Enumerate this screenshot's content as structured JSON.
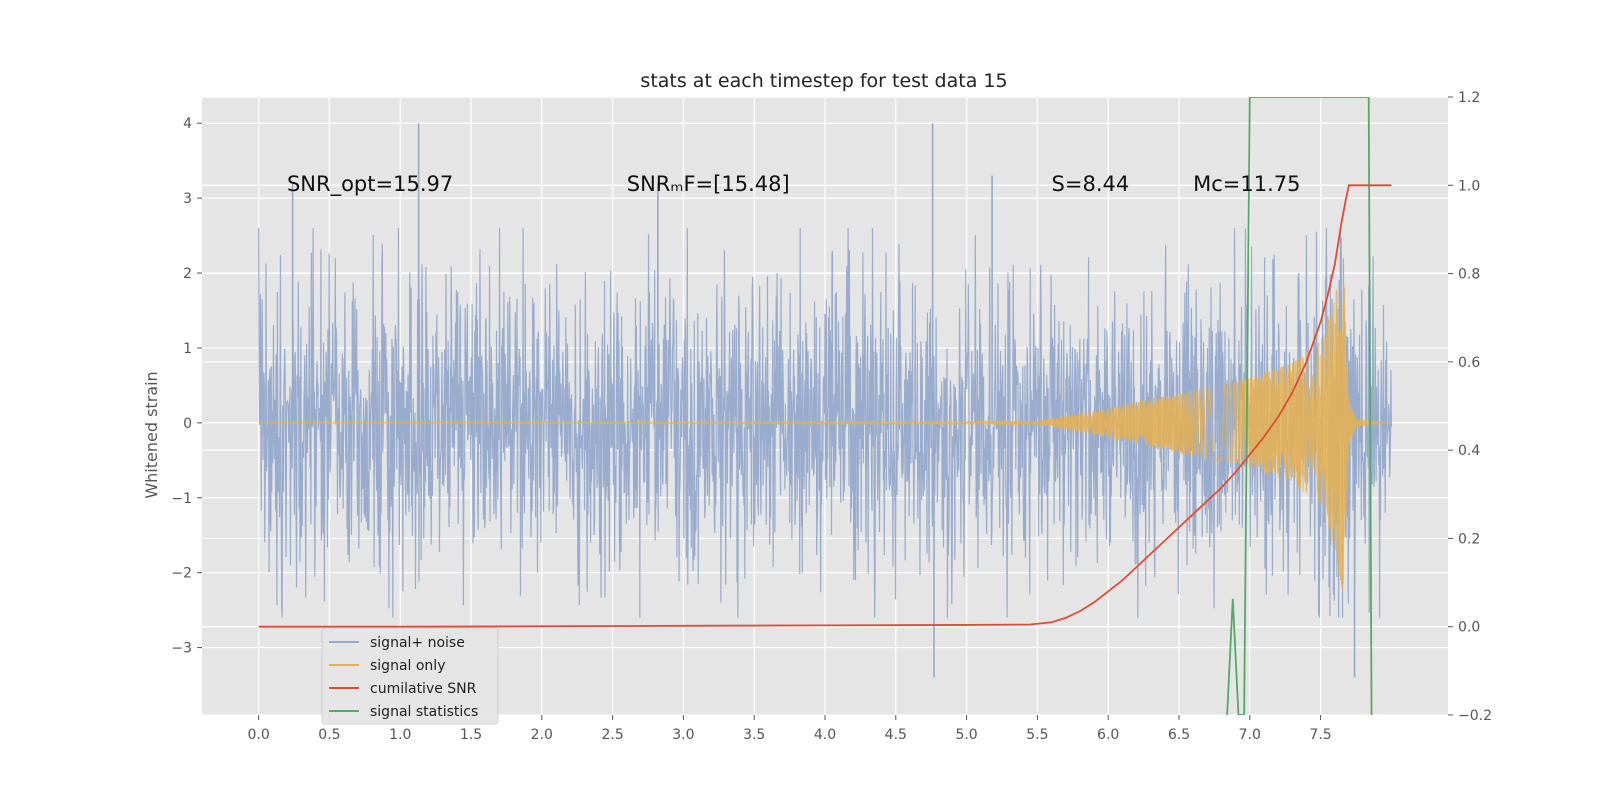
{
  "chart_data": {
    "type": "line",
    "title": "stats at each timestep for test data 15",
    "xlabel": "",
    "ylabel": "Whitened strain",
    "xlim": [
      -0.4,
      8.4
    ],
    "ylim": [
      -3.9,
      4.35
    ],
    "y2lim": [
      -0.2,
      1.2
    ],
    "x_ticks": [
      0.0,
      0.5,
      1.0,
      1.5,
      2.0,
      2.5,
      3.0,
      3.5,
      4.0,
      4.5,
      5.0,
      5.5,
      6.0,
      6.5,
      7.0,
      7.5
    ],
    "x_tick_labels": [
      "0.0",
      "0.5",
      "1.0",
      "1.5",
      "2.0",
      "2.5",
      "3.0",
      "3.5",
      "4.0",
      "4.5",
      "5.0",
      "5.5",
      "6.0",
      "6.5",
      "7.0",
      "7.5"
    ],
    "y_ticks": [
      -3,
      -2,
      -1,
      0,
      1,
      2,
      3,
      4
    ],
    "y_tick_labels": [
      "−3",
      "−2",
      "−1",
      "0",
      "1",
      "2",
      "3",
      "4"
    ],
    "y2_ticks": [
      -0.2,
      0.0,
      0.2,
      0.4,
      0.6,
      0.8,
      1.0,
      1.2
    ],
    "y2_tick_labels": [
      "−0.2",
      "0.0",
      "0.2",
      "0.4",
      "0.6",
      "0.8",
      "1.0",
      "1.2"
    ],
    "grid": true,
    "legend_position": "lower-left",
    "annotations": [
      {
        "id": "snr-opt",
        "text": "SNR_opt=15.97",
        "x": 0.2,
        "y": 3.2
      },
      {
        "id": "snr-mf",
        "text": "SNRₘF=[15.48]",
        "x": 2.6,
        "y": 3.2
      },
      {
        "id": "s-value",
        "text": "S=8.44",
        "x": 5.6,
        "y": 3.2
      },
      {
        "id": "mc-value",
        "text": "Mᴄ=11.75",
        "x": 6.6,
        "y": 3.2
      }
    ],
    "series": [
      {
        "name": "signal+ noise",
        "axis": "left",
        "color": "#95a9cc",
        "x_range": [
          0.0,
          8.0
        ],
        "amplitude_envelope": [
          [
            -2.8,
            1.2
          ],
          [
            -2.2,
            4.0
          ],
          [
            -3.4,
            4.0
          ]
        ],
        "peaks": [
          {
            "x": 0.24,
            "y": 3.2
          },
          {
            "x": 1.13,
            "y": 4.0
          },
          {
            "x": 2.82,
            "y": 3.2
          },
          {
            "x": 4.76,
            "y": 4.0
          },
          {
            "x": 5.18,
            "y": 3.3
          },
          {
            "x": 7.74,
            "y": -3.4
          },
          {
            "x": 4.77,
            "y": -3.4
          }
        ]
      },
      {
        "name": "signal only",
        "axis": "left",
        "color": "#e8b04f",
        "x": [
          0.0,
          5.5,
          6.0,
          6.5,
          7.0,
          7.3,
          7.5,
          7.6,
          7.66,
          7.7,
          7.75,
          8.0
        ],
        "amplitude": [
          0.0,
          0.02,
          0.2,
          0.4,
          0.6,
          0.8,
          1.1,
          1.7,
          2.3,
          0.3,
          0.05,
          0.0
        ]
      },
      {
        "name": "cumilative SNR",
        "axis": "right",
        "color": "#e24a33",
        "x": [
          0.0,
          1.0,
          2.0,
          3.0,
          4.0,
          5.0,
          5.45,
          5.6,
          5.7,
          5.8,
          5.9,
          6.0,
          6.1,
          6.2,
          6.3,
          6.4,
          6.5,
          6.6,
          6.7,
          6.8,
          6.9,
          7.0,
          7.1,
          7.2,
          7.3,
          7.4,
          7.5,
          7.55,
          7.6,
          7.65,
          7.68,
          7.7,
          7.75,
          7.8,
          7.9,
          8.0
        ],
        "values": [
          0.0,
          0.0,
          0.001,
          0.002,
          0.003,
          0.004,
          0.005,
          0.01,
          0.02,
          0.035,
          0.055,
          0.08,
          0.105,
          0.135,
          0.165,
          0.195,
          0.225,
          0.255,
          0.285,
          0.315,
          0.35,
          0.39,
          0.43,
          0.475,
          0.53,
          0.6,
          0.69,
          0.75,
          0.82,
          0.92,
          0.97,
          1.0,
          1.0,
          1.0,
          1.0,
          1.0
        ]
      },
      {
        "name": "signal statistics",
        "axis": "left",
        "color": "#55a868",
        "points": [
          [
            6.84,
            -3.9
          ],
          [
            6.88,
            -2.35
          ],
          [
            6.92,
            -3.9
          ],
          [
            6.96,
            -3.9
          ],
          [
            7.0,
            4.35
          ],
          [
            7.84,
            4.35
          ],
          [
            7.86,
            -3.9
          ]
        ]
      }
    ]
  }
}
